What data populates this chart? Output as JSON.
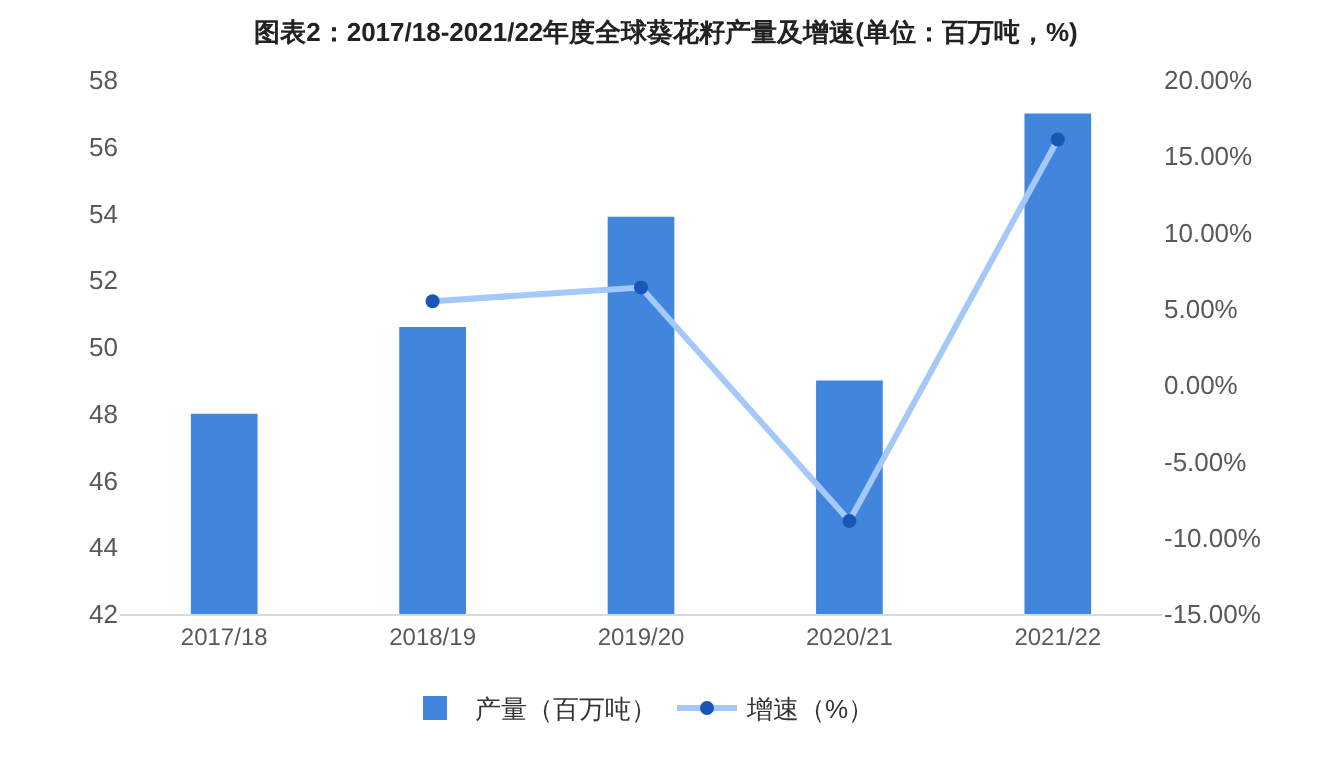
{
  "chart_data": {
    "type": "bar",
    "title": "图表2：2017/18-2021/22年度全球葵花籽产量及增速(单位：百万吨，%)",
    "categories": [
      "2017/18",
      "2018/19",
      "2019/20",
      "2020/21",
      "2021/22"
    ],
    "series": [
      {
        "name": "产量（百万吨）",
        "color": "#4285dc",
        "values": [
          48.0,
          50.6,
          53.9,
          49.0,
          57.0
        ]
      },
      {
        "name": "增速（%）",
        "type": "line",
        "axis": "y2",
        "color": "#a4c8f8",
        "marker": "circle",
        "values": [
          null,
          5.5,
          6.4,
          -8.9,
          16.1
        ]
      }
    ],
    "ylim": [
      42,
      58
    ],
    "yticks": [
      42,
      44,
      46,
      48,
      50,
      52,
      54,
      56,
      58
    ],
    "y2lim": [
      -15,
      20
    ],
    "y2ticks": [
      {
        "value": -15,
        "label": "-15.00%"
      },
      {
        "value": -10,
        "label": "-10.00%"
      },
      {
        "value": -5,
        "label": "-5.00%"
      },
      {
        "value": 0,
        "label": "0.00%"
      },
      {
        "value": 5,
        "label": "5.00%"
      },
      {
        "value": 10,
        "label": "10.00%"
      },
      {
        "value": 15,
        "label": "15.00%"
      },
      {
        "value": 20,
        "label": "20.00%"
      }
    ],
    "grid": false,
    "legend": "bottom"
  }
}
